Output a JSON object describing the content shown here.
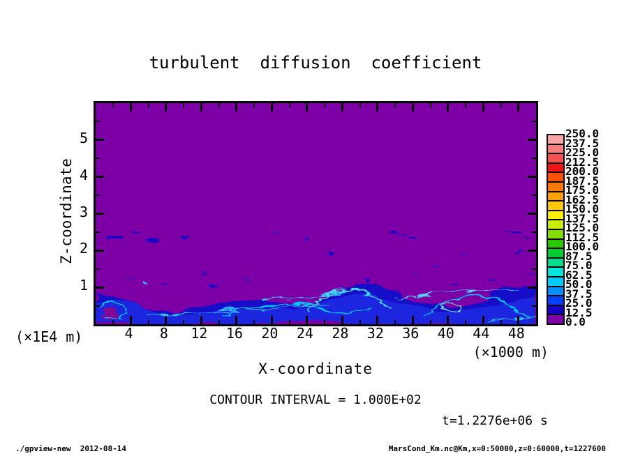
{
  "title": "turbulent  diffusion  coefficient",
  "axes": {
    "x": {
      "label": "X-coordinate",
      "unit": "(×1000 m)",
      "major_ticks": [
        4,
        8,
        12,
        16,
        20,
        24,
        28,
        32,
        36,
        40,
        44,
        48
      ],
      "minor_ticks": [
        2,
        6,
        10,
        14,
        18,
        22,
        26,
        30,
        34,
        38,
        42,
        46
      ],
      "range": [
        0,
        50
      ]
    },
    "z": {
      "label": "Z-coordinate",
      "unit": "(×1E4 m)",
      "major_ticks": [
        1,
        2,
        3,
        4,
        5
      ],
      "minor_ticks": [
        0.5,
        1.5,
        2.5,
        3.5,
        4.5,
        5.5
      ],
      "range": [
        0,
        6
      ]
    }
  },
  "colorbar": {
    "labels": [
      "250.0",
      "237.5",
      "225.0",
      "212.5",
      "200.0",
      "187.5",
      "175.0",
      "162.5",
      "150.0",
      "137.5",
      "125.0",
      "112.5",
      "100.0",
      "87.5",
      "75.0",
      "62.5",
      "50.0",
      "37.5",
      "25.0",
      "12.5",
      "0.0"
    ],
    "cell_colors": [
      "#FBA6A6",
      "#F87D7D",
      "#F55050",
      "#F01414",
      "#FF5000",
      "#FF7800",
      "#FFA000",
      "#FFC800",
      "#FFF000",
      "#C8F000",
      "#82DC00",
      "#28C800",
      "#00CD32",
      "#00DC8C",
      "#00E6DC",
      "#00CDFF",
      "#0091FF",
      "#0041FF",
      "#1400C8",
      "#7D00A8"
    ]
  },
  "notes": {
    "contour_interval": "CONTOUR INTERVAL = 1.000E+02",
    "time": "t=1.2276e+06 s"
  },
  "footer": {
    "left": "./gpview-new  2012-08-14",
    "right": "MarsCond_Km.nc@Km,x=0:50000,z=0:60000,t=1227600"
  },
  "colors": {
    "field_background": "#7C00A6",
    "turbulence_base": "#1508C8",
    "turbulence_mid": "#2233E6",
    "turbulence_filament": "#00C8FF",
    "speckle": "#0C00CC",
    "magenta_patch": "#A00080"
  },
  "chart_data": {
    "type": "heatmap",
    "title": "turbulent diffusion coefficient",
    "xlabel": "X-coordinate",
    "x_unit": "×1000 m",
    "ylabel": "Z-coordinate",
    "y_unit": "×1E4 m",
    "xlim_m": [
      0,
      50000
    ],
    "zlim_m": [
      0,
      60000
    ],
    "x_major_ticks": [
      4,
      8,
      12,
      16,
      20,
      24,
      28,
      32,
      36,
      40,
      44,
      48
    ],
    "z_major_ticks": [
      1,
      2,
      3,
      4,
      5
    ],
    "colorbar_levels": [
      0.0,
      12.5,
      25.0,
      37.5,
      50.0,
      62.5,
      75.0,
      87.5,
      100.0,
      112.5,
      125.0,
      137.5,
      150.0,
      162.5,
      175.0,
      187.5,
      200.0,
      212.5,
      225.0,
      237.5,
      250.0
    ],
    "contour_interval": 100.0,
    "time_seconds": 1227600,
    "source_expression": "MarsCond_Km.nc@Km,x=0:50000,z=0:60000,t=1227600",
    "field_description": "Diffusion coefficient ≈0 (purple, 0–12.5 band) over most of the domain; a turbulent boundary layer below z≈1×1E4 m contains blue eddies (≈12.5–37.5) with cyan filaments (≈50–75); sparse thin dark-blue streaks scattered up to z≈2.7×1E4 m",
    "legend_position": "right",
    "grid": false
  }
}
